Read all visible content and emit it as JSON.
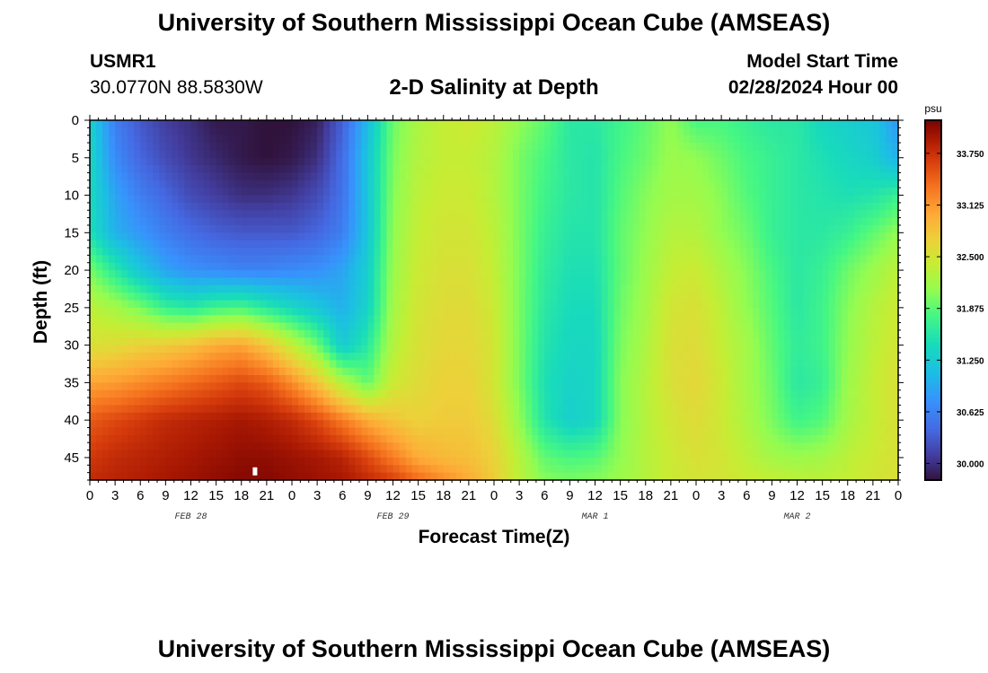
{
  "page": {
    "main_title": "University of Southern Mississippi Ocean Cube (AMSEAS)",
    "footer_title": "University of Southern Mississippi Ocean Cube (AMSEAS)",
    "station_id": "USMR1",
    "station_coords": "30.0770N  88.5830W",
    "subtitle": "2-D Salinity at Depth",
    "model_start_label": "Model Start Time",
    "model_start_value": "02/28/2024 Hour 00"
  },
  "chart_data": {
    "type": "heatmap",
    "title": "2-D Salinity at Depth",
    "xlabel": "Forecast Time(Z)",
    "ylabel": "Depth (ft)",
    "x_tick_labels": [
      "0",
      "3",
      "6",
      "9",
      "12",
      "15",
      "18",
      "21",
      "0",
      "3",
      "6",
      "9",
      "12",
      "15",
      "18",
      "21",
      "0",
      "3",
      "6",
      "9",
      "12",
      "15",
      "18",
      "21",
      "0",
      "3",
      "6",
      "9",
      "12",
      "15",
      "18",
      "21",
      "0"
    ],
    "x_range_hours": [
      0,
      96
    ],
    "date_labels": [
      {
        "label": "FEB 28",
        "hour": 12
      },
      {
        "label": "FEB 29",
        "hour": 36
      },
      {
        "label": "MAR 1",
        "hour": 60
      },
      {
        "label": "MAR 2",
        "hour": 84
      }
    ],
    "y_ticks": [
      0,
      5,
      10,
      15,
      20,
      25,
      30,
      35,
      40,
      45
    ],
    "y_range_ft": [
      0,
      48
    ],
    "colorbar": {
      "unit": "psu",
      "range": [
        29.8,
        34.15
      ],
      "tick_values": [
        30.0,
        30.625,
        31.25,
        31.875,
        32.5,
        33.125,
        33.75
      ],
      "tick_labels": [
        "30.000",
        "30.625",
        "31.250",
        "31.875",
        "32.500",
        "33.125",
        "33.750"
      ]
    },
    "salinity_field": {
      "units": "psu",
      "times_hours": [
        0,
        3,
        6,
        9,
        12,
        15,
        18,
        21,
        24,
        27,
        30,
        33,
        36,
        39,
        42,
        45,
        48,
        51,
        54,
        57,
        60,
        63,
        66,
        69,
        72,
        75,
        78,
        81,
        84,
        87,
        90,
        93,
        96
      ],
      "depths_ft": [
        0,
        5,
        10,
        15,
        20,
        25,
        30,
        35,
        40,
        45,
        48
      ],
      "values": [
        [
          31.35,
          30.6,
          30.3,
          30.1,
          30.0,
          29.85,
          29.85,
          29.8,
          29.8,
          29.9,
          30.35,
          31.1,
          31.95,
          32.25,
          32.4,
          32.45,
          32.35,
          32.1,
          31.9,
          31.6,
          31.6,
          31.75,
          31.9,
          32.1,
          31.8,
          31.8,
          31.7,
          31.6,
          31.6,
          31.4,
          31.3,
          31.2,
          30.8
        ],
        [
          31.4,
          30.7,
          30.4,
          30.2,
          30.05,
          29.95,
          29.85,
          29.8,
          29.85,
          30.0,
          30.45,
          31.2,
          32.0,
          32.3,
          32.4,
          32.4,
          32.3,
          32.0,
          31.8,
          31.6,
          31.55,
          31.8,
          31.95,
          32.15,
          32.1,
          31.95,
          31.8,
          31.7,
          31.6,
          31.5,
          31.4,
          31.3,
          31.0
        ],
        [
          31.45,
          30.9,
          30.6,
          30.4,
          30.2,
          30.1,
          30.0,
          30.0,
          30.05,
          30.2,
          30.5,
          31.2,
          32.05,
          32.35,
          32.45,
          32.45,
          32.3,
          32.0,
          31.75,
          31.6,
          31.55,
          31.85,
          32.05,
          32.2,
          32.2,
          32.05,
          31.85,
          31.7,
          31.6,
          31.55,
          31.5,
          31.55,
          31.7
        ],
        [
          31.5,
          31.0,
          30.8,
          30.6,
          30.45,
          30.35,
          30.3,
          30.3,
          30.3,
          30.4,
          30.6,
          31.2,
          32.1,
          32.4,
          32.5,
          32.5,
          32.35,
          32.0,
          31.7,
          31.55,
          31.55,
          31.9,
          32.1,
          32.3,
          32.3,
          32.1,
          31.95,
          31.7,
          31.6,
          31.6,
          31.7,
          31.9,
          32.1
        ],
        [
          32.0,
          31.6,
          31.2,
          30.9,
          30.75,
          30.7,
          30.65,
          30.65,
          30.7,
          30.75,
          30.9,
          31.3,
          32.15,
          32.45,
          32.55,
          32.55,
          32.4,
          32.0,
          31.65,
          31.5,
          31.5,
          31.9,
          32.15,
          32.4,
          32.45,
          32.25,
          32.05,
          31.8,
          31.6,
          31.7,
          31.95,
          32.15,
          32.35
        ],
        [
          32.35,
          32.2,
          32.0,
          31.7,
          31.6,
          31.75,
          31.8,
          31.6,
          31.4,
          31.2,
          31.0,
          31.35,
          32.2,
          32.5,
          32.6,
          32.6,
          32.45,
          32.0,
          31.6,
          31.45,
          31.45,
          31.95,
          32.2,
          32.5,
          32.55,
          32.35,
          32.1,
          31.85,
          31.6,
          31.75,
          32.05,
          32.3,
          32.45
        ],
        [
          32.55,
          32.6,
          32.7,
          32.75,
          32.85,
          33.0,
          33.05,
          32.8,
          32.4,
          31.95,
          31.25,
          31.6,
          32.3,
          32.55,
          32.65,
          32.65,
          32.5,
          32.0,
          31.55,
          31.4,
          31.4,
          32.0,
          32.25,
          32.55,
          32.6,
          32.4,
          32.2,
          31.9,
          31.65,
          31.75,
          32.1,
          32.35,
          32.5
        ],
        [
          33.05,
          33.1,
          33.2,
          33.3,
          33.4,
          33.5,
          33.6,
          33.5,
          33.2,
          32.8,
          32.3,
          31.9,
          32.45,
          32.6,
          32.7,
          32.7,
          32.5,
          32.0,
          31.5,
          31.35,
          31.4,
          32.05,
          32.3,
          32.55,
          32.65,
          32.45,
          32.2,
          31.95,
          31.6,
          31.7,
          32.15,
          32.4,
          32.55
        ],
        [
          33.5,
          33.6,
          33.7,
          33.8,
          33.85,
          33.9,
          33.95,
          33.9,
          33.8,
          33.6,
          33.3,
          33.0,
          32.8,
          32.7,
          32.75,
          32.75,
          32.6,
          32.1,
          31.55,
          31.3,
          31.4,
          32.05,
          32.3,
          32.5,
          32.6,
          32.45,
          32.25,
          32.0,
          31.75,
          31.85,
          32.2,
          32.4,
          32.55
        ],
        [
          33.7,
          33.8,
          33.85,
          33.9,
          33.95,
          34.0,
          34.05,
          34.05,
          34.0,
          33.95,
          33.85,
          33.6,
          33.3,
          33.0,
          32.9,
          32.85,
          32.7,
          32.3,
          31.9,
          31.8,
          31.85,
          32.1,
          32.3,
          32.45,
          32.55,
          32.5,
          32.35,
          32.2,
          32.15,
          32.2,
          32.35,
          32.45,
          32.55
        ],
        [
          33.8,
          33.85,
          33.9,
          33.95,
          34.0,
          34.05,
          34.1,
          34.1,
          34.05,
          34.0,
          33.95,
          33.8,
          33.65,
          33.4,
          33.2,
          33.0,
          32.75,
          32.35,
          32.05,
          32.0,
          32.05,
          32.15,
          32.3,
          32.45,
          32.5,
          32.5,
          32.45,
          32.4,
          32.35,
          32.35,
          32.4,
          32.5,
          32.55
        ]
      ]
    }
  }
}
